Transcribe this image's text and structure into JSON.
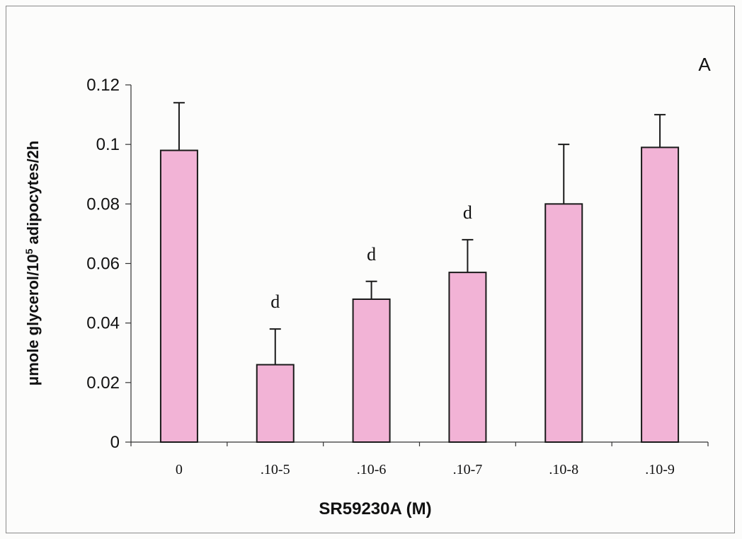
{
  "chart_data": {
    "type": "bar",
    "panel_label": "A",
    "xlabel": "SR59230A (M)",
    "ylabel_parts": {
      "prefix": "μmole glycerol/10",
      "superscript": "5",
      "suffix": " adipocytes/2h"
    },
    "categories": [
      "0",
      ".10-5",
      ".10-6",
      ".10-7",
      ".10-8",
      ".10-9"
    ],
    "values": [
      0.098,
      0.026,
      0.048,
      0.057,
      0.08,
      0.099
    ],
    "error_upper": [
      0.114,
      0.038,
      0.054,
      0.068,
      0.1,
      0.11
    ],
    "annotations": [
      "",
      "d",
      "d",
      "d",
      "",
      ""
    ],
    "ylim": [
      0,
      0.12
    ],
    "yticks": [
      0,
      0.02,
      0.04,
      0.06,
      0.08,
      0.1,
      0.12
    ],
    "ytick_labels": [
      "0",
      "0.02",
      "0.04",
      "0.06",
      "0.08",
      "0.1",
      "0.12"
    ],
    "bar_color": "#f2b3d6",
    "bar_edge_color": "#1a1a1a",
    "grid": false,
    "legend": "none"
  }
}
